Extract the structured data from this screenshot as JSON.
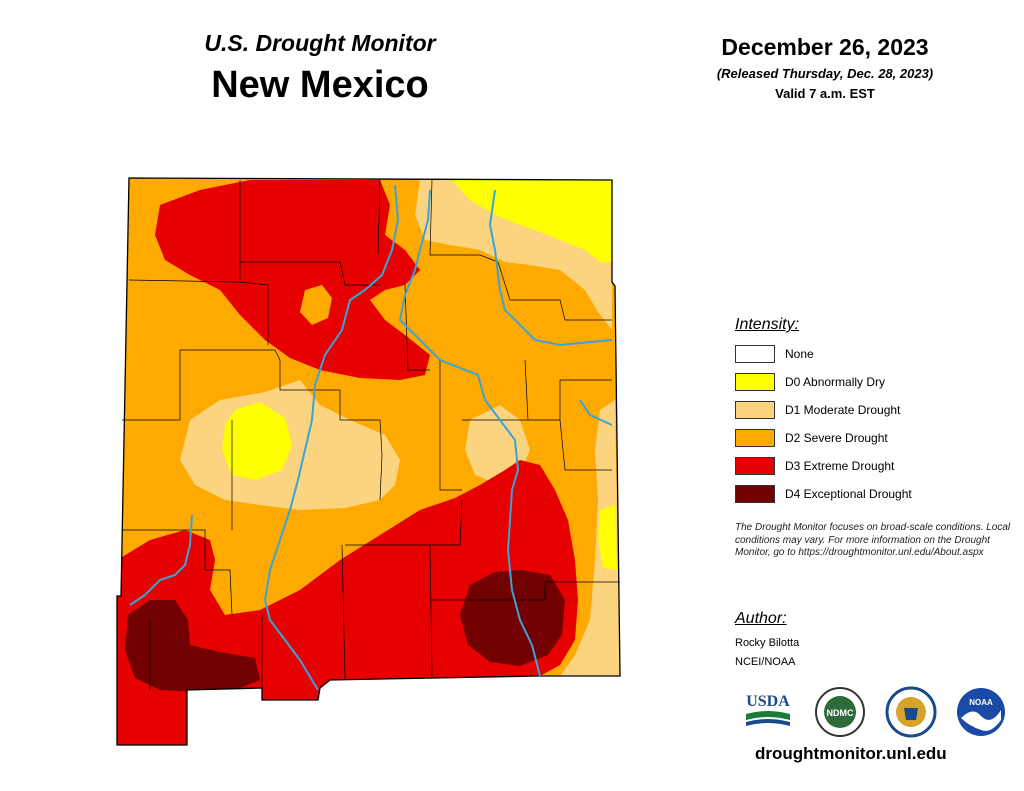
{
  "header": {
    "subtitle": "U.S. Drought Monitor",
    "state": "New Mexico",
    "date": "December 26, 2023",
    "released": "(Released Thursday, Dec. 28, 2023)",
    "valid": "Valid 7 a.m. EST"
  },
  "legend": {
    "title": "Intensity:",
    "items": [
      {
        "label": "None",
        "color": "#ffffff"
      },
      {
        "label": "D0 Abnormally Dry",
        "color": "#ffff00"
      },
      {
        "label": "D1 Moderate Drought",
        "color": "#fcd37f"
      },
      {
        "label": "D2 Severe Drought",
        "color": "#ffaa00"
      },
      {
        "label": "D3 Extreme Drought",
        "color": "#e60000"
      },
      {
        "label": "D4 Exceptional Drought",
        "color": "#730000"
      }
    ]
  },
  "note": "The Drought Monitor focuses on broad-scale conditions. Local conditions may vary. For more information on the Drought Monitor, go to https://droughtmonitor.unl.edu/About.aspx",
  "author": {
    "title": "Author:",
    "name": "Rocky Bilotta",
    "org": "NCEI/NOAA"
  },
  "logos": {
    "usda": "USDA",
    "ndmc": "NDMC",
    "noaa": "NOAA"
  },
  "url": "droughtmonitor.unl.edu",
  "map_colors": {
    "none": "#ffffff",
    "d0": "#ffff00",
    "d1": "#fcd37f",
    "d2": "#ffaa00",
    "d3": "#e60000",
    "d4": "#730000",
    "river": "#3ba3d8",
    "boundary": "#000000"
  }
}
